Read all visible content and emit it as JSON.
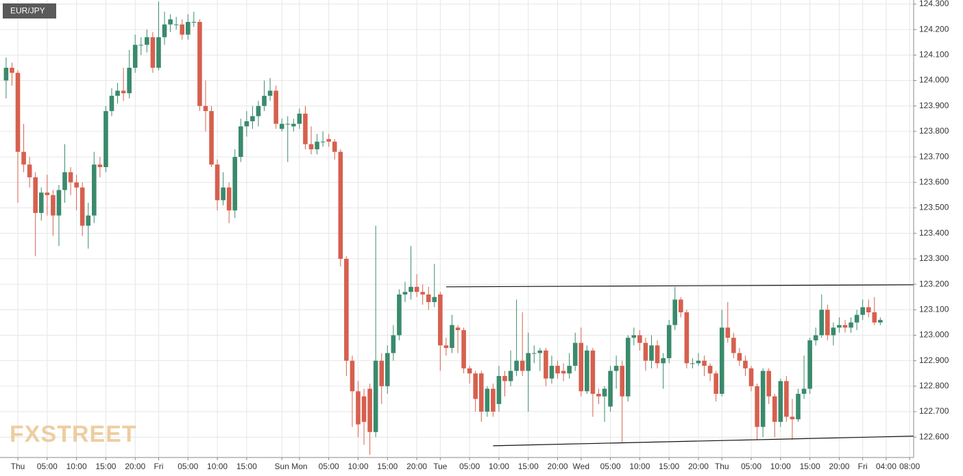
{
  "chart_data": {
    "type": "candlestick",
    "title": "EUR/JPY",
    "watermark": "FXSTREET",
    "up_color": "#3a8a6c",
    "down_color": "#d6604e",
    "grid": true,
    "ylim": [
      122.52,
      124.316
    ],
    "yticks": [
      {
        "value": 122.6,
        "label": "122.600"
      },
      {
        "value": 122.7,
        "label": "122.700"
      },
      {
        "value": 122.8,
        "label": "122.800"
      },
      {
        "value": 122.9,
        "label": "122.900"
      },
      {
        "value": 123.0,
        "label": "123.000"
      },
      {
        "value": 123.1,
        "label": "123.100"
      },
      {
        "value": 123.2,
        "label": "123.200"
      },
      {
        "value": 123.3,
        "label": "123.300"
      },
      {
        "value": 123.4,
        "label": "123.400"
      },
      {
        "value": 123.5,
        "label": "123.500"
      },
      {
        "value": 123.6,
        "label": "123.600"
      },
      {
        "value": 123.7,
        "label": "123.700"
      },
      {
        "value": 123.8,
        "label": "123.800"
      },
      {
        "value": 123.9,
        "label": "123.900"
      },
      {
        "value": 124.0,
        "label": "124.000"
      },
      {
        "value": 124.1,
        "label": "124.100"
      },
      {
        "value": 124.2,
        "label": "124.200"
      },
      {
        "value": 124.3,
        "label": "124.300"
      }
    ],
    "categories": [
      null,
      null,
      "Thu",
      null,
      null,
      null,
      null,
      "05:00",
      null,
      null,
      null,
      null,
      "10:00",
      null,
      null,
      null,
      null,
      "15:00",
      null,
      null,
      null,
      null,
      "20:00",
      null,
      null,
      null,
      "Fri",
      null,
      null,
      null,
      null,
      "05:00",
      null,
      null,
      null,
      null,
      "10:00",
      null,
      null,
      null,
      null,
      "15:00",
      null,
      null,
      null,
      null,
      null,
      "Sun",
      null,
      null,
      "Mon",
      null,
      null,
      null,
      null,
      "05:00",
      null,
      null,
      null,
      null,
      "10:00",
      null,
      null,
      null,
      null,
      "15:00",
      null,
      null,
      null,
      null,
      "20:00",
      null,
      null,
      null,
      "Tue",
      null,
      null,
      null,
      null,
      "05:00",
      null,
      null,
      null,
      null,
      "10:00",
      null,
      null,
      null,
      null,
      "15:00",
      null,
      null,
      null,
      null,
      "20:00",
      null,
      null,
      null,
      "Wed",
      null,
      null,
      null,
      null,
      "05:00",
      null,
      null,
      null,
      null,
      "10:00",
      null,
      null,
      null,
      null,
      "15:00",
      null,
      null,
      null,
      null,
      "20:00",
      null,
      null,
      null,
      "Thu",
      null,
      null,
      null,
      null,
      "05:00",
      null,
      null,
      null,
      null,
      "10:00",
      null,
      null,
      null,
      null,
      "15:00",
      null,
      null,
      null,
      null,
      "20:00",
      null,
      null,
      null,
      "Fri",
      null,
      null,
      null,
      "04:00",
      null,
      null,
      null,
      "08:00"
    ],
    "open": [
      124.0,
      124.05,
      124.03,
      123.72,
      123.67,
      123.62,
      123.48,
      123.56,
      123.55,
      123.47,
      123.57,
      123.64,
      123.6,
      123.58,
      123.43,
      123.47,
      123.67,
      123.66,
      123.88,
      123.94,
      123.96,
      123.95,
      124.05,
      124.14,
      124.14,
      124.17,
      124.05,
      124.17,
      124.22,
      124.22,
      124.22,
      124.18,
      124.23,
      124.23,
      123.9,
      123.88,
      123.67,
      123.53,
      123.58,
      123.49,
      123.7,
      123.82,
      123.84,
      123.86,
      123.9,
      123.94,
      123.96,
      123.81,
      123.83,
      123.82,
      123.83,
      123.87,
      123.75,
      123.73,
      123.76,
      123.77,
      123.76,
      123.72,
      123.3,
      122.9,
      122.78,
      122.76,
      122.79,
      122.62,
      122.9,
      122.8,
      122.93,
      123.0,
      123.16,
      123.17,
      123.19,
      123.17,
      123.16,
      123.13,
      123.16,
      122.96,
      122.95,
      123.03,
      123.02,
      122.87,
      122.85,
      122.85,
      122.7,
      122.79,
      122.73,
      122.84,
      122.82,
      122.86,
      122.9,
      122.86,
      122.93,
      122.93,
      122.94,
      122.83,
      122.88,
      122.86,
      122.85,
      122.88,
      122.97,
      122.78,
      122.94,
      122.77,
      122.76,
      122.72,
      122.86,
      122.88,
      122.76,
      122.99,
      123.0,
      122.97,
      122.9,
      122.96,
      122.89,
      122.91,
      123.04,
      123.14,
      123.09,
      122.89,
      122.89,
      122.9,
      122.88,
      122.85,
      122.77,
      123.03,
      122.99,
      122.93,
      122.9,
      122.87,
      122.8,
      122.64,
      122.86,
      122.76,
      122.66,
      122.82,
      122.68,
      122.67,
      122.77,
      122.79,
      122.98,
      123.0,
      123.1,
      123.0,
      123.03,
      123.04,
      123.03,
      123.05,
      123.08,
      123.11,
      123.09,
      123.05,
      null,
      null,
      null,
      null,
      null
    ],
    "high": [
      124.09,
      124.07,
      124.04,
      123.83,
      123.7,
      123.64,
      123.58,
      123.63,
      123.57,
      123.59,
      123.75,
      123.66,
      123.63,
      123.6,
      123.52,
      123.72,
      123.7,
      123.9,
      123.97,
      123.99,
      124.05,
      124.12,
      124.18,
      124.17,
      124.2,
      124.19,
      124.31,
      124.27,
      124.26,
      124.25,
      124.24,
      124.26,
      124.27,
      124.24,
      124.0,
      123.9,
      123.69,
      123.64,
      123.6,
      123.73,
      123.85,
      123.88,
      123.9,
      123.92,
      124.0,
      124.01,
      123.98,
      123.85,
      123.86,
      123.85,
      123.89,
      123.9,
      123.82,
      123.79,
      123.8,
      123.79,
      123.77,
      123.73,
      123.31,
      122.92,
      122.82,
      122.79,
      122.81,
      123.43,
      122.93,
      122.96,
      123.04,
      123.18,
      123.21,
      123.35,
      123.24,
      123.2,
      123.19,
      123.28,
      123.17,
      122.99,
      123.08,
      123.04,
      123.03,
      122.88,
      122.86,
      122.86,
      122.8,
      122.81,
      122.88,
      122.86,
      122.94,
      123.14,
      123.09,
      123.01,
      122.96,
      122.95,
      122.95,
      122.92,
      122.9,
      122.89,
      122.93,
      123.01,
      123.03,
      122.96,
      122.95,
      122.79,
      122.8,
      122.88,
      122.92,
      122.9,
      123.0,
      123.03,
      123.02,
      122.99,
      123.0,
      122.98,
      122.93,
      123.06,
      123.19,
      123.15,
      123.1,
      122.91,
      122.93,
      122.92,
      122.89,
      122.86,
      123.1,
      123.13,
      123.01,
      122.95,
      122.92,
      122.88,
      122.81,
      122.87,
      122.87,
      122.77,
      122.83,
      122.84,
      122.75,
      122.79,
      122.92,
      122.99,
      123.03,
      123.16,
      123.12,
      123.05,
      123.07,
      123.06,
      123.07,
      123.1,
      123.14,
      123.14,
      123.15,
      123.07,
      null,
      null,
      null,
      null,
      null
    ],
    "low": [
      123.93,
      123.98,
      123.52,
      123.64,
      123.58,
      123.31,
      123.45,
      123.47,
      123.39,
      123.35,
      123.52,
      123.55,
      123.49,
      123.39,
      123.34,
      123.44,
      123.62,
      123.64,
      123.86,
      123.91,
      123.92,
      123.93,
      124.03,
      124.1,
      124.11,
      124.03,
      124.04,
      124.14,
      124.19,
      124.2,
      124.16,
      124.16,
      124.21,
      123.88,
      123.8,
      123.66,
      123.49,
      123.51,
      123.44,
      123.46,
      123.68,
      123.78,
      123.81,
      123.82,
      123.88,
      123.92,
      123.81,
      123.8,
      123.68,
      123.8,
      123.81,
      123.73,
      123.71,
      123.71,
      123.74,
      123.74,
      123.69,
      123.27,
      122.84,
      122.64,
      122.6,
      122.57,
      122.53,
      122.6,
      122.73,
      122.77,
      122.9,
      122.98,
      123.13,
      123.14,
      123.15,
      123.12,
      123.1,
      123.11,
      122.86,
      122.92,
      122.93,
      122.93,
      122.85,
      122.81,
      122.7,
      122.66,
      122.68,
      122.68,
      122.7,
      122.76,
      122.8,
      122.84,
      122.84,
      122.7,
      122.89,
      122.86,
      122.8,
      122.81,
      122.83,
      122.82,
      122.83,
      122.86,
      122.76,
      122.77,
      122.68,
      122.73,
      122.66,
      122.7,
      122.79,
      122.58,
      122.74,
      122.96,
      122.94,
      122.86,
      122.87,
      122.87,
      122.79,
      122.89,
      123.02,
      123.07,
      122.87,
      122.87,
      122.88,
      122.84,
      122.82,
      122.74,
      122.76,
      122.97,
      122.91,
      122.88,
      122.84,
      122.78,
      122.59,
      122.6,
      122.73,
      122.6,
      122.64,
      122.66,
      122.59,
      122.66,
      122.75,
      122.77,
      122.96,
      122.99,
      122.98,
      122.96,
      123.01,
      123.01,
      123.01,
      123.02,
      123.06,
      123.07,
      123.04,
      123.04,
      null,
      null,
      null,
      null,
      null
    ],
    "close": [
      124.05,
      124.03,
      123.72,
      123.67,
      123.62,
      123.48,
      123.56,
      123.55,
      123.47,
      123.57,
      123.64,
      123.6,
      123.58,
      123.43,
      123.47,
      123.67,
      123.66,
      123.88,
      123.94,
      123.96,
      123.95,
      124.05,
      124.14,
      124.14,
      124.17,
      124.05,
      124.17,
      124.22,
      124.24,
      124.22,
      124.18,
      124.23,
      124.23,
      123.9,
      123.88,
      123.67,
      123.53,
      123.58,
      123.49,
      123.7,
      123.82,
      123.84,
      123.86,
      123.9,
      123.94,
      123.96,
      123.83,
      123.83,
      123.83,
      123.83,
      123.87,
      123.75,
      123.73,
      123.76,
      123.76,
      123.76,
      123.72,
      123.3,
      122.9,
      122.78,
      122.65,
      122.66,
      122.62,
      122.9,
      122.8,
      122.93,
      123.0,
      123.16,
      123.17,
      123.19,
      123.17,
      123.16,
      123.13,
      123.15,
      122.96,
      122.95,
      123.04,
      123.02,
      122.87,
      122.85,
      122.75,
      122.7,
      122.79,
      122.7,
      122.84,
      122.82,
      122.86,
      122.9,
      122.86,
      122.93,
      122.93,
      122.94,
      122.83,
      122.88,
      122.85,
      122.85,
      122.88,
      122.97,
      122.78,
      122.94,
      122.77,
      122.76,
      122.79,
      122.86,
      122.88,
      122.76,
      122.99,
      123.0,
      122.97,
      122.9,
      122.96,
      122.89,
      122.91,
      123.04,
      123.14,
      123.09,
      122.89,
      122.89,
      122.9,
      122.88,
      122.85,
      122.77,
      123.03,
      122.99,
      122.93,
      122.9,
      122.87,
      122.8,
      122.64,
      122.86,
      122.76,
      122.66,
      122.82,
      122.68,
      122.67,
      122.77,
      122.79,
      122.98,
      123.0,
      123.1,
      123.0,
      123.03,
      123.04,
      123.03,
      123.05,
      123.08,
      123.11,
      123.09,
      123.05,
      123.06,
      null,
      null,
      null,
      null,
      null
    ],
    "lines": [
      {
        "x": [
          75,
          154.7
        ],
        "y": [
          123.19,
          123.198
        ]
      },
      {
        "x": [
          83,
          154.7
        ],
        "y": [
          122.566,
          122.604
        ]
      }
    ]
  }
}
